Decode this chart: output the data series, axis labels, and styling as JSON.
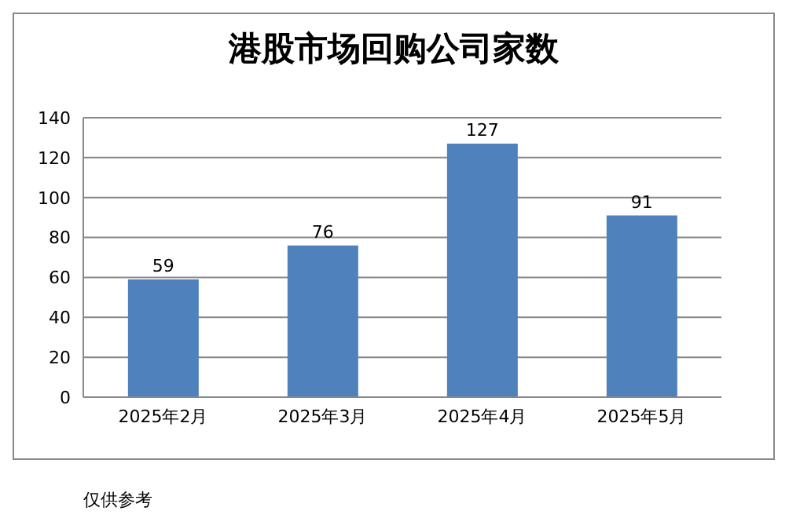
{
  "chart_data": {
    "type": "bar",
    "title": "港股市场回购公司家数",
    "categories": [
      "2025年2月",
      "2025年3月",
      "2025年4月",
      "2025年5月"
    ],
    "values": [
      59,
      76,
      127,
      91
    ],
    "color": "#4f81bd",
    "ylim": [
      0,
      140
    ],
    "yticks": [
      0,
      20,
      40,
      60,
      80,
      100,
      120,
      140
    ],
    "grid": "y",
    "data_labels": true,
    "annotations": [
      "仅供参考"
    ]
  }
}
